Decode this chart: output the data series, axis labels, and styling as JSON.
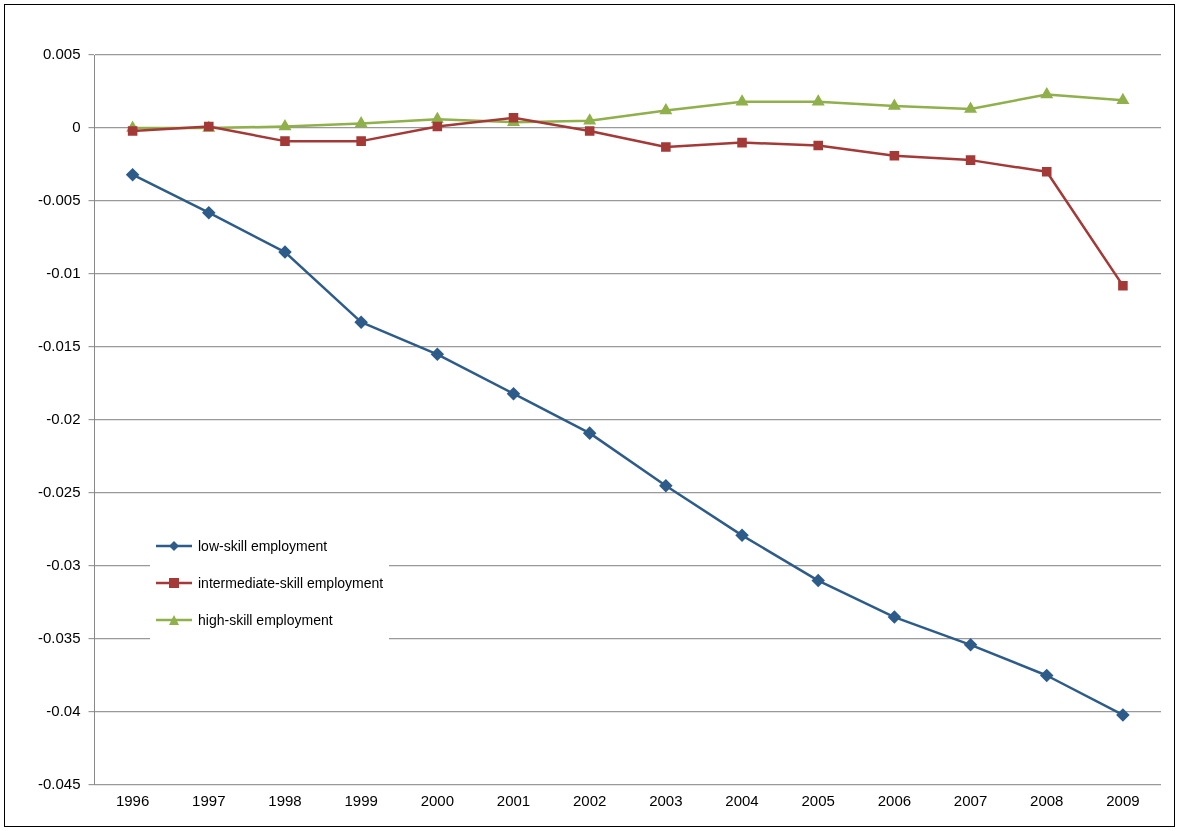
{
  "chart_data": {
    "type": "line",
    "categories": [
      "1996",
      "1997",
      "1998",
      "1999",
      "2000",
      "2001",
      "2002",
      "2003",
      "2004",
      "2005",
      "2006",
      "2007",
      "2008",
      "2009"
    ],
    "series": [
      {
        "name": "low-skill employment",
        "color": "#2e5c8a",
        "marker": "diamond",
        "values": [
          -0.0032,
          -0.0058,
          -0.0085,
          -0.0133,
          -0.0155,
          -0.0182,
          -0.0209,
          -0.0245,
          -0.0279,
          -0.031,
          -0.0335,
          -0.0354,
          -0.0375,
          -0.0402
        ]
      },
      {
        "name": "intermediate-skill employment",
        "color": "#a33a37",
        "marker": "square",
        "values": [
          -0.0002,
          0.0001,
          -0.0009,
          -0.0009,
          0.0001,
          0.0007,
          -0.0002,
          -0.0013,
          -0.001,
          -0.0012,
          -0.0019,
          -0.0022,
          -0.003,
          -0.0108
        ]
      },
      {
        "name": "high-skill employment",
        "color": "#8fb04a",
        "marker": "triangle",
        "values": [
          0,
          0,
          0.0001,
          0.0003,
          0.0006,
          0.0004,
          0.0005,
          0.0012,
          0.0018,
          0.0018,
          0.0015,
          0.0013,
          0.0023,
          0.0019
        ]
      }
    ],
    "ylim": [
      -0.045,
      0.005
    ],
    "yticks": [
      0.005,
      0,
      -0.005,
      -0.01,
      -0.015,
      -0.02,
      -0.025,
      -0.03,
      -0.035,
      -0.04,
      -0.045
    ],
    "grid": "y",
    "legend": "left"
  }
}
